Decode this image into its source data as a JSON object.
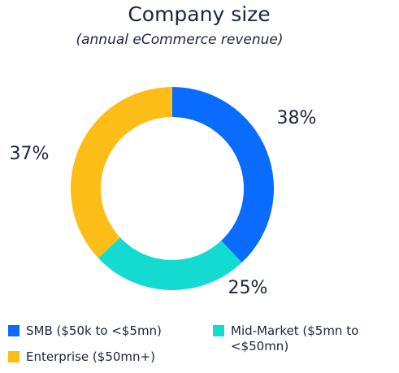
{
  "chart_data": {
    "type": "donut",
    "title": "Company size",
    "subtitle": "(annual eCommerce revenue)",
    "categories": [
      "SMB ($50k to <$5mn)",
      "Mid-Market ($5mn to <$50mn)",
      "Enterprise ($50mn+)"
    ],
    "values": [
      38,
      25,
      37
    ],
    "value_labels": [
      "38%",
      "25%",
      "37%"
    ],
    "colors": [
      "#0a6cff",
      "#14dbd2",
      "#fbbd16"
    ]
  }
}
